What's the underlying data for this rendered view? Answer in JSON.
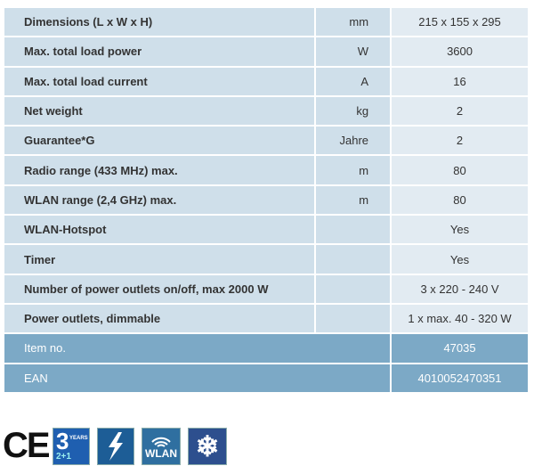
{
  "rows": [
    {
      "label": "Dimensions (L x W x H)",
      "unit": "mm",
      "value": "215 x 155 x 295"
    },
    {
      "label": "Max. total load power",
      "unit": "W",
      "value": "3600"
    },
    {
      "label": "Max. total load current",
      "unit": "A",
      "value": "16"
    },
    {
      "label": "Net weight",
      "unit": "kg",
      "value": "2"
    },
    {
      "label": "Guarantee*G",
      "unit": "Jahre",
      "value": "2"
    },
    {
      "label": "Radio range (433 MHz) max.",
      "unit": "m",
      "value": "80"
    },
    {
      "label": "WLAN range (2,4 GHz) max.",
      "unit": "m",
      "value": "80"
    },
    {
      "label": "WLAN-Hotspot",
      "unit": "",
      "value": "Yes"
    },
    {
      "label": "Timer",
      "unit": "",
      "value": "Yes"
    },
    {
      "label": "Number of power outlets on/off, max 2000 W",
      "unit": "",
      "value": "3 x 220 - 240 V"
    },
    {
      "label": "Power outlets, dimmable",
      "unit": "",
      "value": "1 x max. 40 - 320 W"
    }
  ],
  "item": {
    "label": "Item no.",
    "value": "47035"
  },
  "ean": {
    "label": "EAN",
    "value": "4010052470351"
  },
  "icons": {
    "ce": "CE",
    "warranty_big": "3",
    "warranty_small": "2+1",
    "warranty_years": "YEARS",
    "wlan": "WLAN",
    "names": [
      "ce-mark",
      "warranty-icon",
      "lightning-icon",
      "wlan-icon",
      "snowflake-icon"
    ]
  },
  "colors": {
    "row_bg": "#cfdfea",
    "value_bg": "#e2ebf2",
    "header_bg": "#7ca9c6"
  }
}
